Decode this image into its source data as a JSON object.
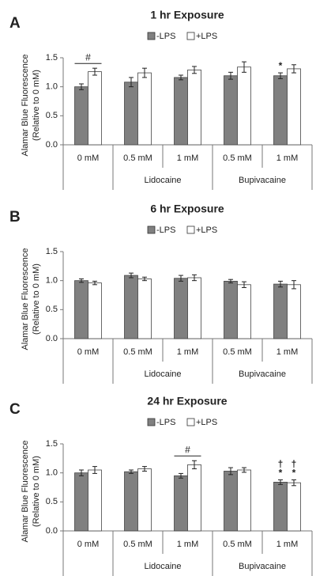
{
  "chart_data": [
    {
      "type": "bar",
      "panel_label": "A",
      "title": "1 hr Exposure",
      "y_label": [
        "Alamar Blue Fluorescence",
        "(Relative to 0 mM)"
      ],
      "categories": [
        "0 mM",
        "0.5 mM",
        "1 mM",
        "0.5 mM",
        "1 mM"
      ],
      "category_groups": [
        null,
        "Lidocaine",
        "Lidocaine",
        "Bupivacaine",
        "Bupivacaine"
      ],
      "series": [
        {
          "name": "-LPS",
          "color": "#808080",
          "values": [
            1.0,
            1.08,
            1.16,
            1.19,
            1.19
          ],
          "errors": [
            0.05,
            0.08,
            0.04,
            0.06,
            0.05
          ],
          "markers": [
            null,
            null,
            null,
            null,
            [
              "*"
            ]
          ]
        },
        {
          "name": "+LPS",
          "color": "#ffffff",
          "values": [
            1.26,
            1.24,
            1.29,
            1.34,
            1.31
          ],
          "errors": [
            0.06,
            0.08,
            0.06,
            0.09,
            0.07
          ],
          "markers": [
            null,
            null,
            null,
            null,
            null
          ]
        }
      ],
      "group_markers": [
        "#",
        null,
        null,
        null,
        null
      ],
      "ylim": [
        0,
        1.5
      ],
      "yticks": [
        {
          "value": 0,
          "label": "0.0"
        },
        {
          "value": 0.5,
          "label": "0.5"
        },
        {
          "value": 1,
          "label": "1.0"
        },
        {
          "value": 1.5,
          "label": "1.5"
        }
      ],
      "grid": false
    },
    {
      "type": "bar",
      "panel_label": "B",
      "title": "6 hr Exposure",
      "y_label": [
        "Alamar Blue Fluorescence",
        "(Relative to 0 mM)"
      ],
      "categories": [
        "0 mM",
        "0.5 mM",
        "1 mM",
        "0.5 mM",
        "1 mM"
      ],
      "category_groups": [
        null,
        "Lidocaine",
        "Lidocaine",
        "Bupivacaine",
        "Bupivacaine"
      ],
      "series": [
        {
          "name": "-LPS",
          "color": "#808080",
          "values": [
            1.0,
            1.09,
            1.04,
            0.99,
            0.94
          ],
          "errors": [
            0.03,
            0.04,
            0.05,
            0.03,
            0.05
          ],
          "markers": [
            null,
            null,
            null,
            null,
            null
          ]
        },
        {
          "name": "+LPS",
          "color": "#ffffff",
          "values": [
            0.96,
            1.03,
            1.05,
            0.93,
            0.93
          ],
          "errors": [
            0.03,
            0.03,
            0.05,
            0.05,
            0.07
          ],
          "markers": [
            null,
            null,
            null,
            null,
            null
          ]
        }
      ],
      "group_markers": [
        null,
        null,
        null,
        null,
        null
      ],
      "ylim": [
        0,
        1.5
      ],
      "yticks": [
        {
          "value": 0,
          "label": "0.0"
        },
        {
          "value": 0.5,
          "label": "0.5"
        },
        {
          "value": 1,
          "label": "1.0"
        },
        {
          "value": 1.5,
          "label": "1.5"
        }
      ],
      "grid": false
    },
    {
      "type": "bar",
      "panel_label": "C",
      "title": "24 hr Exposure",
      "y_label": [
        "Alamar Blue Fluorescence",
        "(Relative to 0 mM)"
      ],
      "categories": [
        "0 mM",
        "0.5 mM",
        "1 mM",
        "0.5 mM",
        "1 mM"
      ],
      "category_groups": [
        null,
        "Lidocaine",
        "Lidocaine",
        "Bupivacaine",
        "Bupivacaine"
      ],
      "series": [
        {
          "name": "-LPS",
          "color": "#808080",
          "values": [
            1.0,
            1.02,
            0.95,
            1.03,
            0.84
          ],
          "errors": [
            0.05,
            0.03,
            0.04,
            0.06,
            0.04
          ],
          "markers": [
            null,
            null,
            null,
            null,
            [
              "†",
              "*"
            ]
          ]
        },
        {
          "name": "+LPS",
          "color": "#ffffff",
          "values": [
            1.05,
            1.07,
            1.14,
            1.05,
            0.83
          ],
          "errors": [
            0.06,
            0.04,
            0.07,
            0.04,
            0.05
          ],
          "markers": [
            null,
            null,
            null,
            null,
            [
              "†",
              "*"
            ]
          ]
        }
      ],
      "group_markers": [
        null,
        null,
        "#",
        null,
        null
      ],
      "ylim": [
        0,
        1.5
      ],
      "yticks": [
        {
          "value": 0,
          "label": "0.0"
        },
        {
          "value": 0.5,
          "label": "0.5"
        },
        {
          "value": 1,
          "label": "1.0"
        },
        {
          "value": 1.5,
          "label": "1.5"
        }
      ],
      "grid": false
    }
  ]
}
